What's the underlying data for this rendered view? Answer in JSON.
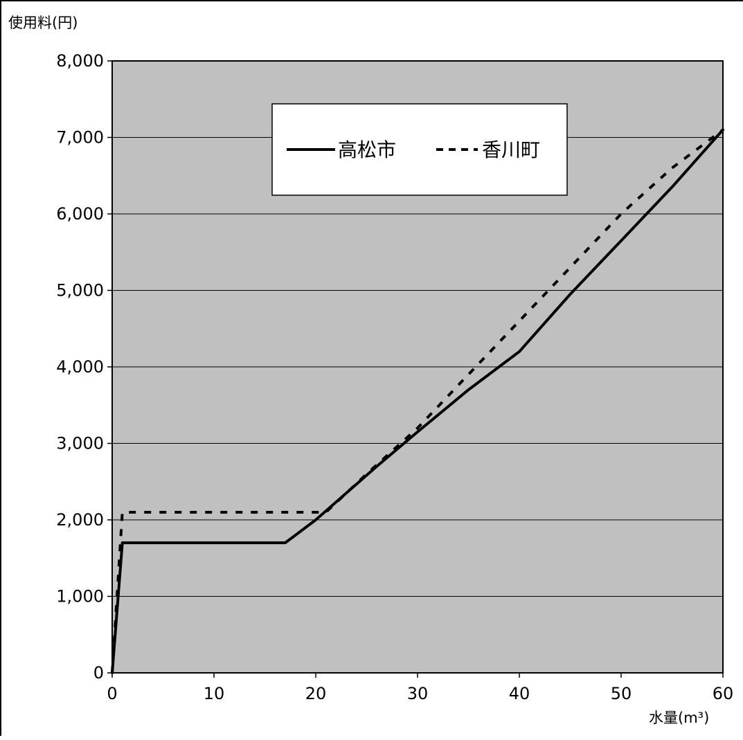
{
  "chart_data": {
    "type": "line",
    "title": "",
    "ylabel": "使用料(円)",
    "xlabel": "水量(m³)",
    "xlim": [
      0,
      60
    ],
    "ylim": [
      0,
      8000
    ],
    "x_ticks": [
      0,
      10,
      20,
      30,
      40,
      50,
      60
    ],
    "y_ticks": [
      0,
      1000,
      2000,
      3000,
      4000,
      5000,
      6000,
      7000,
      8000
    ],
    "x_tick_labels": [
      "0",
      "10",
      "20",
      "30",
      "40",
      "50",
      "60"
    ],
    "y_tick_labels": [
      "0",
      "1,000",
      "2,000",
      "3,000",
      "4,000",
      "5,000",
      "6,000",
      "7,000",
      "8,000"
    ],
    "grid": "horizontal",
    "legend_position": "top-center",
    "plot_background": "#c0c0c0",
    "series": [
      {
        "name": "高松市",
        "style": "solid",
        "color": "#000000",
        "points": [
          [
            0,
            0
          ],
          [
            1,
            1700
          ],
          [
            2,
            1700
          ],
          [
            17,
            1700
          ],
          [
            18,
            1800
          ],
          [
            20,
            2000
          ],
          [
            26,
            2700
          ],
          [
            30,
            3150
          ],
          [
            35,
            3700
          ],
          [
            40,
            4200
          ],
          [
            45,
            4950
          ],
          [
            50,
            5650
          ],
          [
            55,
            6350
          ],
          [
            60,
            7100
          ]
        ]
      },
      {
        "name": "香川町",
        "style": "dashed",
        "color": "#000000",
        "points": [
          [
            0,
            0
          ],
          [
            1,
            2100
          ],
          [
            21,
            2100
          ],
          [
            25,
            2600
          ],
          [
            30,
            3200
          ],
          [
            35,
            3900
          ],
          [
            40,
            4600
          ],
          [
            45,
            5300
          ],
          [
            50,
            6000
          ],
          [
            55,
            6600
          ],
          [
            60,
            7100
          ]
        ]
      }
    ]
  }
}
